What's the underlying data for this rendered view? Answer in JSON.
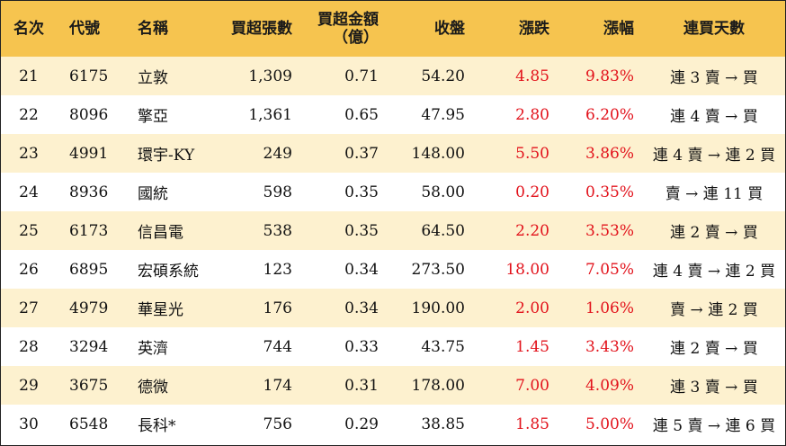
{
  "header": {
    "rank": "名次",
    "code": "代號",
    "name": "名稱",
    "net_lots": "買超張數",
    "net_amount_line1": "買超金額",
    "net_amount_line2": "（億）",
    "close": "收盤",
    "change": "漲跌",
    "change_pct": "漲幅",
    "streak": "連買天數"
  },
  "colors": {
    "header_bg": "#f6c44f",
    "stripe_bg": "#fdf1cf",
    "up": "#e2121b"
  },
  "rows": [
    {
      "rank": "21",
      "code": "6175",
      "name": "立敦",
      "net_lots": "1,309",
      "net_amount": "0.71",
      "close": "54.20",
      "change": "4.85",
      "change_pct": "9.83%",
      "streak": "連 3 賣 → 買"
    },
    {
      "rank": "22",
      "code": "8096",
      "name": "擎亞",
      "net_lots": "1,361",
      "net_amount": "0.65",
      "close": "47.95",
      "change": "2.80",
      "change_pct": "6.20%",
      "streak": "連 4 賣 → 買"
    },
    {
      "rank": "23",
      "code": "4991",
      "name": "環宇-KY",
      "net_lots": "249",
      "net_amount": "0.37",
      "close": "148.00",
      "change": "5.50",
      "change_pct": "3.86%",
      "streak": "連 4 賣 → 連 2 買"
    },
    {
      "rank": "24",
      "code": "8936",
      "name": "國統",
      "net_lots": "598",
      "net_amount": "0.35",
      "close": "58.00",
      "change": "0.20",
      "change_pct": "0.35%",
      "streak": "賣 → 連 11 買"
    },
    {
      "rank": "25",
      "code": "6173",
      "name": "信昌電",
      "net_lots": "538",
      "net_amount": "0.35",
      "close": "64.50",
      "change": "2.20",
      "change_pct": "3.53%",
      "streak": "連 2 賣 → 買"
    },
    {
      "rank": "26",
      "code": "6895",
      "name": "宏碩系統",
      "net_lots": "123",
      "net_amount": "0.34",
      "close": "273.50",
      "change": "18.00",
      "change_pct": "7.05%",
      "streak": "連 4 賣 → 連 2 買"
    },
    {
      "rank": "27",
      "code": "4979",
      "name": "華星光",
      "net_lots": "176",
      "net_amount": "0.34",
      "close": "190.00",
      "change": "2.00",
      "change_pct": "1.06%",
      "streak": "賣 → 連 2 買"
    },
    {
      "rank": "28",
      "code": "3294",
      "name": "英濟",
      "net_lots": "744",
      "net_amount": "0.33",
      "close": "43.75",
      "change": "1.45",
      "change_pct": "3.43%",
      "streak": "連 2 賣 → 買"
    },
    {
      "rank": "29",
      "code": "3675",
      "name": "德微",
      "net_lots": "174",
      "net_amount": "0.31",
      "close": "178.00",
      "change": "7.00",
      "change_pct": "4.09%",
      "streak": "連 3 賣 → 買"
    },
    {
      "rank": "30",
      "code": "6548",
      "name": "長科*",
      "net_lots": "756",
      "net_amount": "0.29",
      "close": "38.85",
      "change": "1.85",
      "change_pct": "5.00%",
      "streak": "連 5 賣 → 連 6 買"
    }
  ]
}
